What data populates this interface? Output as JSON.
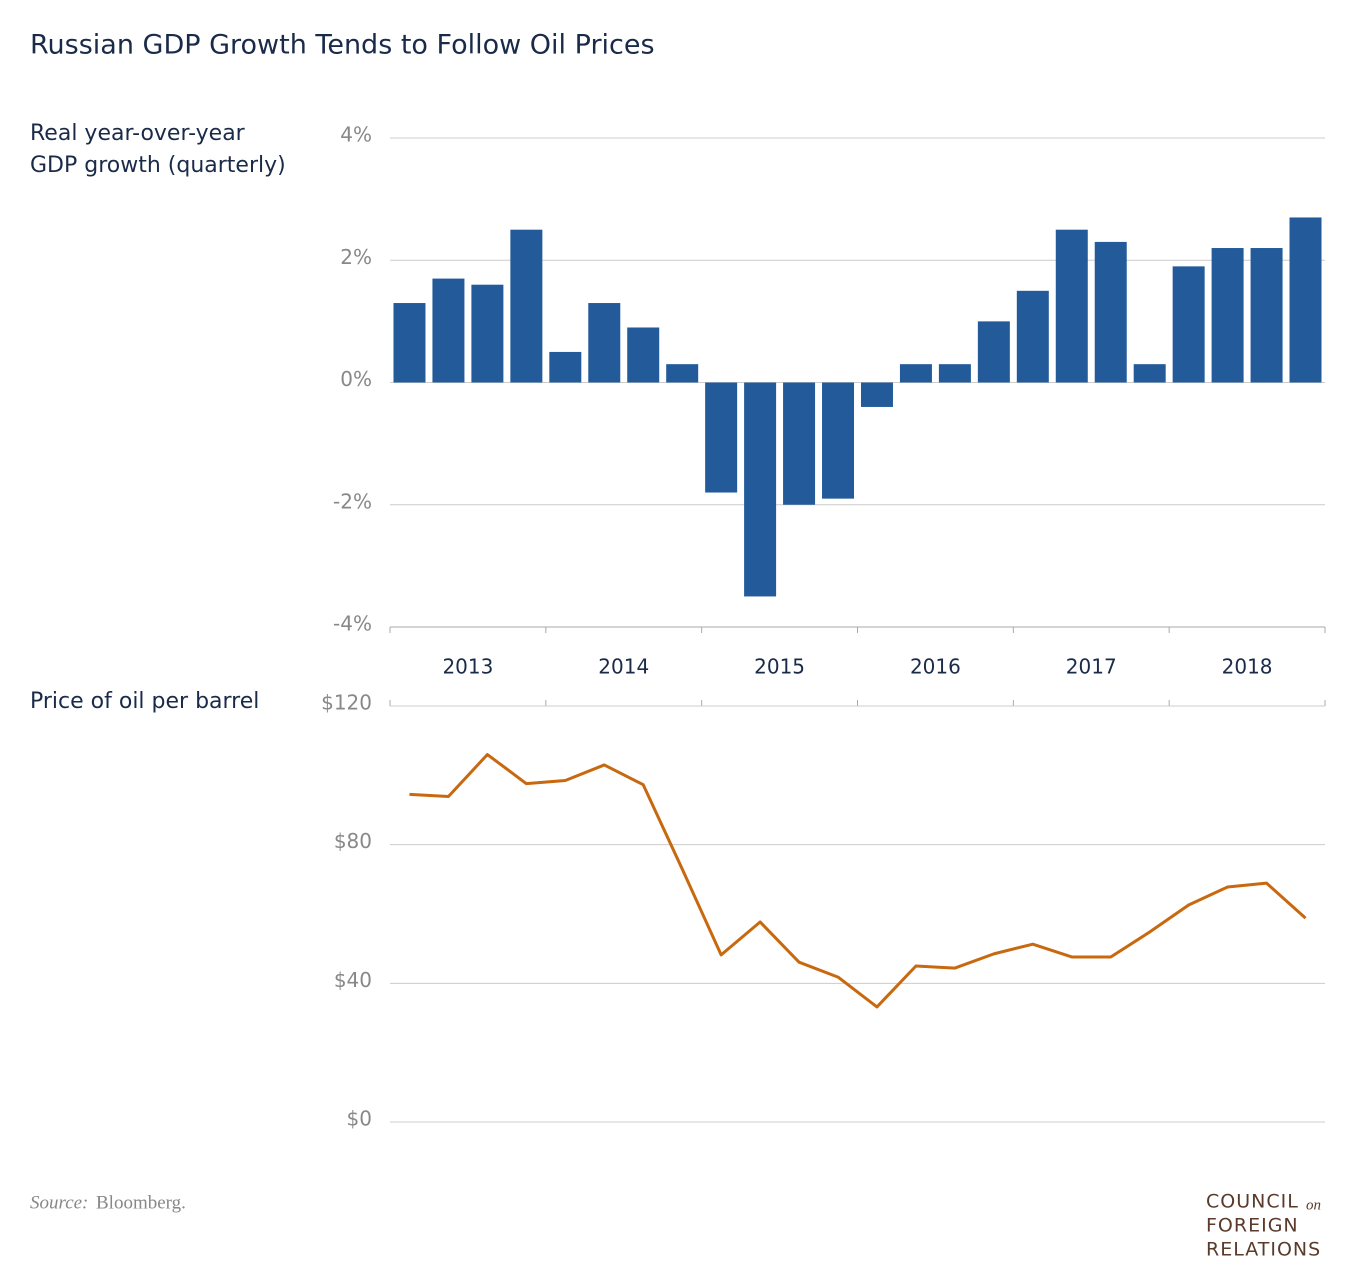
{
  "title": "Russian GDP Growth Tends to Follow Oil Prices",
  "chart_data": [
    {
      "type": "bar",
      "axis_label": [
        "Real year-over-year",
        "GDP growth (quarterly)"
      ],
      "categories": [
        "2013",
        null,
        null,
        null,
        "2014",
        null,
        null,
        null,
        "2015",
        null,
        null,
        null,
        "2016",
        null,
        null,
        null,
        "2017",
        null,
        null,
        null,
        "2018",
        null,
        null,
        null
      ],
      "values": [
        1.3,
        1.7,
        1.6,
        2.5,
        0.5,
        1.3,
        0.9,
        0.3,
        -1.8,
        -3.5,
        -2.0,
        -1.9,
        -0.4,
        0.3,
        0.3,
        1.0,
        1.5,
        2.5,
        2.3,
        0.3,
        1.9,
        2.2,
        2.2,
        2.7
      ],
      "color": "#235b9a",
      "ylim": [
        -4,
        4
      ],
      "yticks": [
        {
          "value": -4,
          "label": "-4%"
        },
        {
          "value": -2,
          "label": "-2%"
        },
        {
          "value": 0,
          "label": "0%"
        },
        {
          "value": 2,
          "label": "2%"
        },
        {
          "value": 4,
          "label": "4%"
        }
      ],
      "grid": true
    },
    {
      "type": "line",
      "axis_label": [
        "Price of oil per barrel"
      ],
      "values": [
        94.5,
        93.9,
        106,
        97.6,
        98.5,
        103,
        97.3,
        73,
        48.2,
        57.7,
        46.1,
        41.8,
        33.2,
        45,
        44.4,
        48.5,
        51.3,
        47.6,
        47.6,
        54.8,
        62.6,
        67.8,
        68.9,
        58.8
      ],
      "color": "#c8680f",
      "ylim": [
        0,
        120
      ],
      "yticks": [
        {
          "value": 0,
          "label": "$0"
        },
        {
          "value": 40,
          "label": "$40"
        },
        {
          "value": 80,
          "label": "$80"
        },
        {
          "value": 120,
          "label": "$120"
        }
      ],
      "grid": true
    }
  ],
  "source": {
    "prefix": "Source:",
    "text": "Bloomberg."
  },
  "logo": {
    "line1": "COUNCIL",
    "on": "on",
    "line2": "FOREIGN",
    "line3": "RELATIONS"
  }
}
